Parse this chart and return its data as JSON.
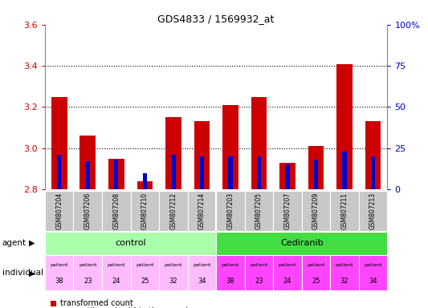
{
  "title": "GDS4833 / 1569932_at",
  "samples": [
    "GSM807204",
    "GSM807206",
    "GSM807208",
    "GSM807210",
    "GSM807212",
    "GSM807214",
    "GSM807203",
    "GSM807205",
    "GSM807207",
    "GSM807209",
    "GSM807211",
    "GSM807213"
  ],
  "transformed_count": [
    3.25,
    3.06,
    2.95,
    2.84,
    3.15,
    3.13,
    3.21,
    3.25,
    2.93,
    3.01,
    3.41,
    3.13
  ],
  "percentile_rank": [
    21,
    17,
    18,
    10,
    21,
    20,
    20,
    20,
    15,
    18,
    23,
    20
  ],
  "bar_base": 2.8,
  "ylim": [
    2.8,
    3.6
  ],
  "yticks": [
    2.8,
    3.0,
    3.2,
    3.4,
    3.6
  ],
  "right_yticks": [
    0,
    25,
    50,
    75,
    100
  ],
  "right_ylabels": [
    "0",
    "25",
    "50",
    "75",
    "100%"
  ],
  "patients": [
    "38",
    "23",
    "24",
    "25",
    "32",
    "34",
    "38",
    "23",
    "24",
    "25",
    "32",
    "34"
  ],
  "bar_color_red": "#CC0000",
  "bar_color_blue": "#0000CC",
  "bar_width": 0.55,
  "blue_bar_width": 0.15,
  "tick_label_color_left": "#CC0000",
  "tick_label_color_right": "#0000CC",
  "sample_bg_color": "#C8C8C8",
  "control_agent_color": "#AAFFAA",
  "cediranib_agent_color": "#44DD44",
  "control_patient_color": "#FFBBFF",
  "cediranib_patient_color": "#FF44FF",
  "n_control": 6,
  "n_total": 12
}
